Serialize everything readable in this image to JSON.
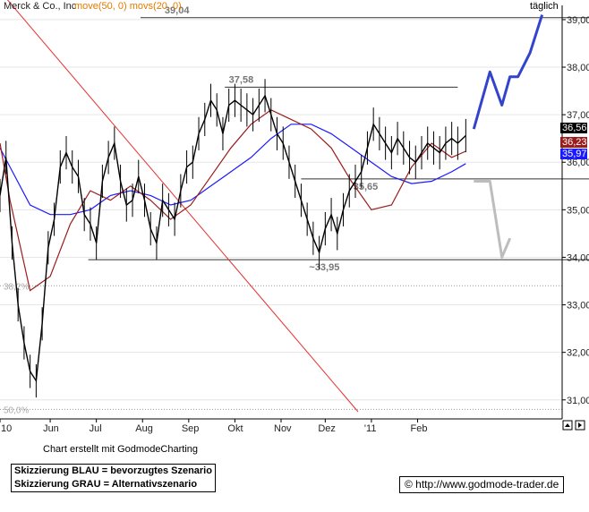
{
  "header": {
    "instrument": "Merck & Co., Inc",
    "indicators": "move(50, 0) movs(20, 0)",
    "interval": "täglich"
  },
  "colors": {
    "price": "#000000",
    "ma50": "#1a1aff",
    "ma20": "#9b1c1c",
    "trend": "#e53030",
    "scenario_blue": "#3344cc",
    "scenario_gray": "#bdbdbd",
    "hline": "#333333",
    "fib": "#999999",
    "axis_text": "#222222",
    "header_indicator": "#e07b00"
  },
  "chart_data": {
    "type": "line",
    "y_unit": "price",
    "ylim": [
      30.6,
      39.3
    ],
    "y_ticks": [
      "31,00",
      "32,00",
      "33,00",
      "34,00",
      "35,00",
      "36,00",
      "37,00",
      "38,00",
      "39,00"
    ],
    "x_ticks": [
      "10",
      "Jun",
      "Jul",
      "Aug",
      "Sep",
      "Okt",
      "Nov",
      "Dez",
      "'11",
      "Feb"
    ],
    "series": [
      {
        "name": "move(50, 0)",
        "key": "ma50",
        "x": [
          0,
          5,
          15,
          25,
          35,
          45,
          55,
          65,
          75,
          85,
          95,
          105,
          115,
          125,
          135,
          145,
          155,
          165,
          175,
          185,
          195,
          205,
          215,
          225,
          232
        ],
        "values": [
          36.3,
          35.9,
          35.1,
          34.9,
          34.9,
          35.0,
          35.3,
          35.4,
          35.3,
          35.1,
          35.2,
          35.5,
          35.8,
          36.1,
          36.5,
          36.8,
          36.8,
          36.6,
          36.3,
          36.0,
          35.7,
          35.55,
          35.6,
          35.8,
          35.97
        ]
      },
      {
        "name": "movs(20, 0)",
        "key": "ma20",
        "x": [
          0,
          5,
          15,
          25,
          35,
          45,
          55,
          65,
          75,
          85,
          95,
          105,
          115,
          125,
          135,
          145,
          155,
          165,
          175,
          185,
          195,
          205,
          215,
          225,
          232
        ],
        "values": [
          36.4,
          35.2,
          33.3,
          33.6,
          34.7,
          35.4,
          35.2,
          35.5,
          35.2,
          34.8,
          35.1,
          35.7,
          36.3,
          36.8,
          37.1,
          36.9,
          36.7,
          36.3,
          35.6,
          35.0,
          35.1,
          35.9,
          36.4,
          36.1,
          36.23
        ]
      }
    ],
    "price_path": {
      "x": [
        0,
        3,
        6,
        9,
        12,
        15,
        18,
        21,
        24,
        27,
        30,
        33,
        36,
        39,
        42,
        45,
        48,
        51,
        54,
        57,
        60,
        63,
        66,
        69,
        72,
        75,
        78,
        81,
        84,
        87,
        90,
        93,
        96,
        99,
        102,
        105,
        108,
        111,
        114,
        117,
        120,
        123,
        126,
        129,
        132,
        135,
        138,
        141,
        144,
        147,
        150,
        153,
        156,
        159,
        162,
        165,
        168,
        171,
        174,
        177,
        180,
        183,
        186,
        189,
        192,
        195,
        198,
        201,
        204,
        207,
        210,
        213,
        216,
        219,
        222,
        225,
        228,
        232
      ],
      "values": [
        35.3,
        36.1,
        34.3,
        33.0,
        32.2,
        31.6,
        31.4,
        32.6,
        34.2,
        34.8,
        35.9,
        36.2,
        35.9,
        35.7,
        34.9,
        34.7,
        34.3,
        35.6,
        36.1,
        36.4,
        35.6,
        35.1,
        35.2,
        35.7,
        35.2,
        34.6,
        34.3,
        35.2,
        35.0,
        34.8,
        35.4,
        35.9,
        36.0,
        36.6,
        36.9,
        37.3,
        37.1,
        36.6,
        37.2,
        37.3,
        37.2,
        37.1,
        37.0,
        37.2,
        37.4,
        37.0,
        36.6,
        36.4,
        36.0,
        35.6,
        35.2,
        34.8,
        34.4,
        34.1,
        34.6,
        34.9,
        34.5,
        35.0,
        35.4,
        35.6,
        35.8,
        36.3,
        36.8,
        36.6,
        36.4,
        36.2,
        36.5,
        36.3,
        36.1,
        36.0,
        36.2,
        36.4,
        36.3,
        36.2,
        36.4,
        36.5,
        36.4,
        36.56
      ]
    },
    "level_lines": [
      {
        "label": "39,04",
        "value": 39.04
      },
      {
        "label": "37,58",
        "value": 37.58
      },
      {
        "label": "35,65",
        "value": 35.65
      },
      {
        "label": "~33,95",
        "value": 33.95
      }
    ],
    "fib_labels": [
      {
        "label": "38,2%",
        "value": 33.4
      },
      {
        "label": "50,0%",
        "value": 30.8
      }
    ],
    "last_value_labels": [
      {
        "label": "36,56",
        "value": 36.56,
        "key": "price"
      },
      {
        "label": "36,23",
        "value": 36.23,
        "key": "ma20"
      },
      {
        "label": "35,97",
        "value": 35.97,
        "key": "ma50"
      }
    ],
    "scenario_blue_path": {
      "x": [
        236,
        244,
        250,
        254,
        258,
        264,
        270
      ],
      "values": [
        36.7,
        37.9,
        37.2,
        37.8,
        37.8,
        38.3,
        39.1
      ]
    },
    "scenario_gray_path": {
      "x": [
        236,
        244,
        250,
        254
      ],
      "values": [
        35.6,
        35.6,
        34.0,
        34.4
      ]
    }
  },
  "footer": {
    "credit": "Chart erstellt mit GodmodeCharting",
    "legend_blue": "Skizzierung BLAU = bevorzugtes Szenario",
    "legend_gray": "Skizzierung GRAU = Alternativszenario",
    "website": "© http://www.godmode-trader.de"
  }
}
